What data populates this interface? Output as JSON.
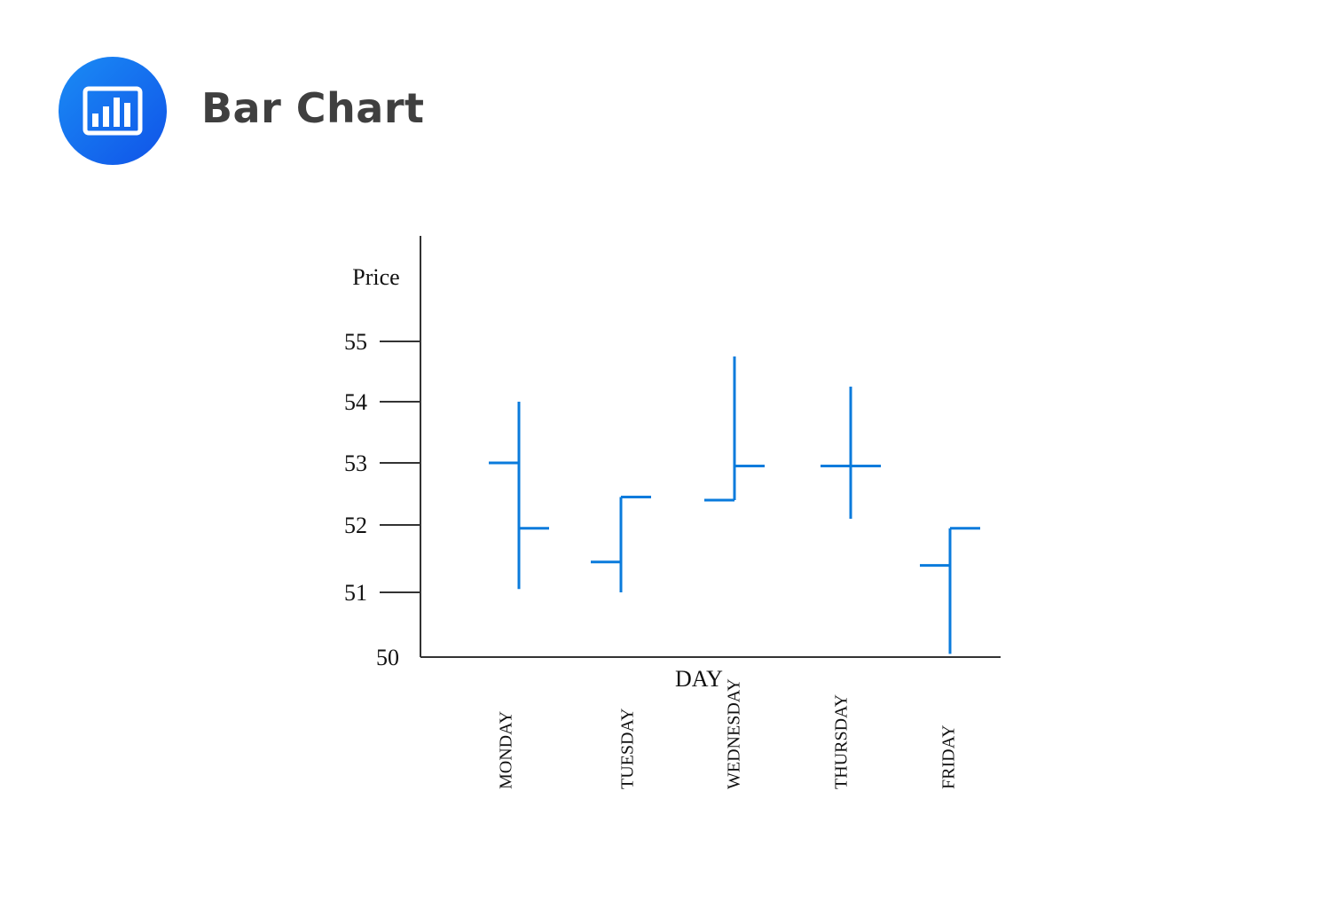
{
  "header": {
    "icon": "bar-chart-icon",
    "title": "Bar Chart",
    "accent_color": "#1565ee"
  },
  "chart_data": {
    "type": "bar",
    "subtype": "ohlc",
    "title": "",
    "xlabel": "DAY",
    "ylabel": "Price",
    "categories": [
      "MONDAY",
      "TUESDAY",
      "WEDNESDAY",
      "THURSDAY",
      "FRIDAY"
    ],
    "series": [
      {
        "open": [
          53.0,
          51.45,
          52.4,
          52.95,
          51.4
        ],
        "high": [
          54.0,
          52.45,
          54.75,
          54.25,
          51.95
        ],
        "low": [
          51.05,
          51.0,
          52.4,
          52.1,
          50.05
        ],
        "close": [
          51.95,
          52.45,
          52.95,
          52.95,
          51.95
        ]
      }
    ],
    "yticks": [
      "50",
      "51",
      "52",
      "53",
      "54",
      "55"
    ],
    "ylim": [
      50,
      55
    ],
    "grid": false,
    "bar_color": "#0a7bdc",
    "axis_color": "#333333"
  }
}
